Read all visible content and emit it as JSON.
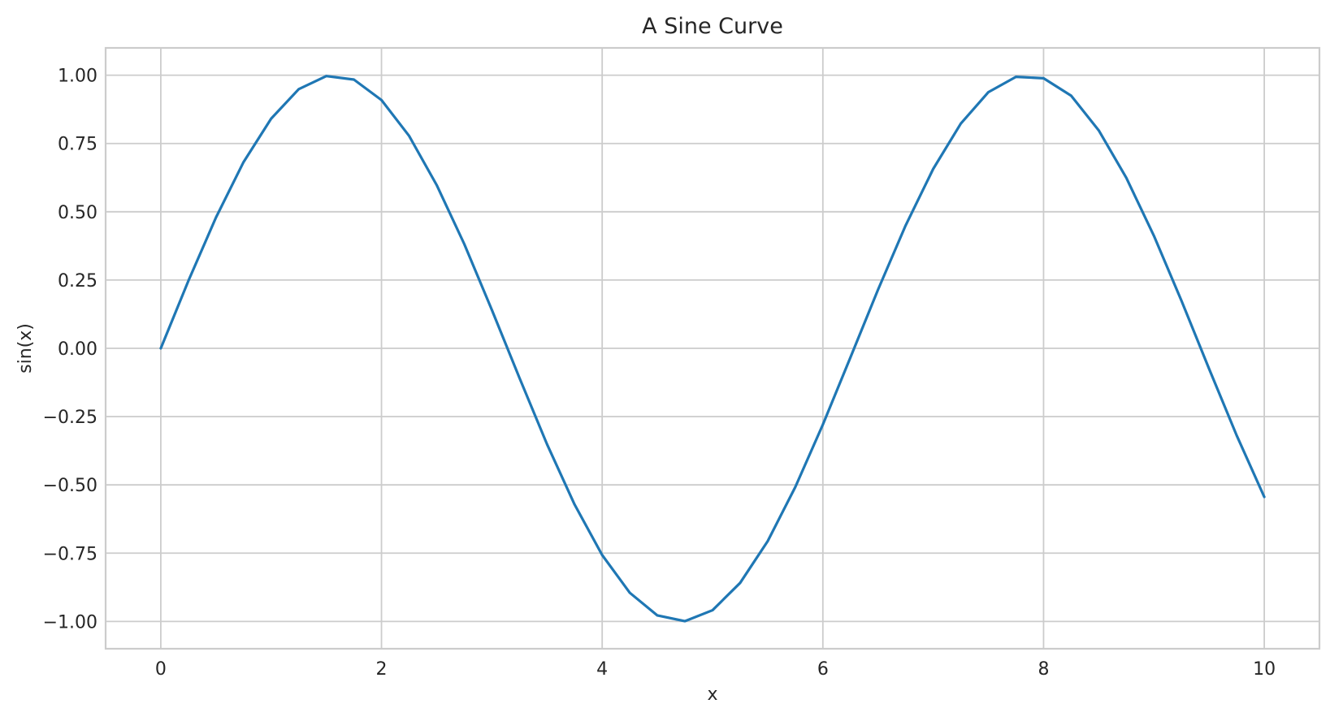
{
  "chart_data": {
    "type": "line",
    "title": "A Sine Curve",
    "xlabel": "x",
    "ylabel": "sin(x)",
    "xlim": [
      -0.5,
      10.5
    ],
    "ylim": [
      -1.1,
      1.1
    ],
    "x_ticks": [
      0,
      2,
      4,
      6,
      8,
      10
    ],
    "x_tick_labels": [
      "0",
      "2",
      "4",
      "6",
      "8",
      "10"
    ],
    "y_ticks": [
      1.0,
      0.75,
      0.5,
      0.25,
      0.0,
      -0.25,
      -0.5,
      -0.75,
      -1.0
    ],
    "y_tick_labels": [
      "1.00",
      "0.75",
      "0.50",
      "0.25",
      "0.00",
      "−0.25",
      "−0.50",
      "−0.75",
      "−1.00"
    ],
    "grid": true,
    "series": [
      {
        "color": "#1f77b4",
        "x": [
          0,
          0.25,
          0.5,
          0.75,
          1,
          1.25,
          1.5,
          1.75,
          2,
          2.25,
          2.5,
          2.75,
          3,
          3.25,
          3.5,
          3.75,
          4,
          4.25,
          4.5,
          4.75,
          5,
          5.25,
          5.5,
          5.75,
          6,
          6.25,
          6.5,
          6.75,
          7,
          7.25,
          7.5,
          7.75,
          8,
          8.25,
          8.5,
          8.75,
          9,
          9.25,
          9.5,
          9.75,
          10
        ],
        "y": [
          0.0,
          0.247,
          0.479,
          0.682,
          0.841,
          0.949,
          0.997,
          0.984,
          0.909,
          0.778,
          0.598,
          0.382,
          0.141,
          -0.108,
          -0.351,
          -0.572,
          -0.757,
          -0.895,
          -0.978,
          -0.999,
          -0.959,
          -0.859,
          -0.706,
          -0.508,
          -0.279,
          -0.033,
          0.215,
          0.45,
          0.657,
          0.823,
          0.938,
          0.994,
          0.989,
          0.925,
          0.798,
          0.624,
          0.412,
          0.174,
          -0.075,
          -0.319,
          -0.544
        ]
      }
    ]
  }
}
